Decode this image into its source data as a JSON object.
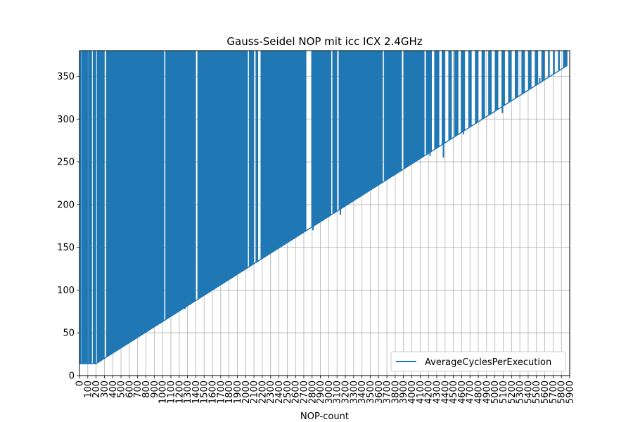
{
  "chart_data": {
    "type": "line",
    "title": "Gauss-Seidel NOP mit icc ICX 2.4GHz",
    "xlabel": "NOP-count",
    "ylabel": "",
    "xlim": [
      0,
      5900
    ],
    "ylim": [
      0,
      380
    ],
    "x_ticks": [
      0,
      100,
      200,
      300,
      400,
      500,
      600,
      700,
      800,
      900,
      1000,
      1100,
      1200,
      1300,
      1400,
      1500,
      1600,
      1700,
      1800,
      1900,
      2000,
      2100,
      2200,
      2300,
      2400,
      2500,
      2600,
      2700,
      2800,
      2900,
      3000,
      3100,
      3200,
      3300,
      3400,
      3500,
      3600,
      3700,
      3800,
      3900,
      4000,
      4100,
      4200,
      4300,
      4400,
      4500,
      4600,
      4700,
      4800,
      4900,
      5000,
      5100,
      5200,
      5300,
      5400,
      5500,
      5600,
      5700,
      5800,
      5900
    ],
    "y_ticks": [
      0,
      50,
      100,
      150,
      200,
      250,
      300,
      350
    ],
    "grid": true,
    "legend_position": "lower-right",
    "series": [
      {
        "name": "AverageCyclesPerExecution",
        "color": "#1f77b4",
        "baseline": [
          [
            0,
            14
          ],
          [
            200,
            14
          ],
          [
            5860,
            362
          ]
        ],
        "spike_top": 380,
        "spike_density_regions": [
          {
            "from": 0,
            "to": 300,
            "gaps": [
              [
                20,
                25
              ],
              [
                100,
                104
              ],
              [
                150,
                160
              ],
              [
                200,
                210
              ]
            ]
          },
          {
            "from": 300,
            "to": 4150,
            "gaps": [
              [
                300,
                320
              ],
              [
                1020,
                1035
              ],
              [
                1400,
                1420
              ],
              [
                2025,
                2040
              ],
              [
                2100,
                2120
              ],
              [
                2150,
                2180
              ],
              [
                2730,
                2790
              ],
              [
                3030,
                3045
              ],
              [
                3100,
                3120
              ],
              [
                3650,
                3665
              ],
              [
                3880,
                3900
              ]
            ]
          },
          {
            "from": 4150,
            "to": 5870,
            "gaps": [
              [
                4150,
                4170
              ],
              [
                4240,
                4270
              ],
              [
                4330,
                4360
              ],
              [
                4400,
                4440
              ],
              [
                4480,
                4510
              ],
              [
                4560,
                4590
              ],
              [
                4640,
                4680
              ],
              [
                4720,
                4760
              ],
              [
                4800,
                4840
              ],
              [
                4880,
                4920
              ],
              [
                4960,
                5000
              ],
              [
                5040,
                5080
              ],
              [
                5120,
                5160
              ],
              [
                5200,
                5240
              ],
              [
                5280,
                5320
              ],
              [
                5360,
                5400
              ],
              [
                5440,
                5480
              ],
              [
                5520,
                5560
              ],
              [
                5600,
                5640
              ],
              [
                5660,
                5700
              ],
              [
                5720,
                5760
              ],
              [
                5780,
                5820
              ]
            ]
          }
        ],
        "down_spikes": [
          [
            1020,
            65
          ],
          [
            1270,
            78
          ],
          [
            2810,
            170
          ],
          [
            3140,
            188
          ],
          [
            4220,
            257
          ],
          [
            4380,
            255
          ],
          [
            4620,
            282
          ],
          [
            5090,
            307
          ],
          [
            5540,
            348
          ]
        ]
      }
    ]
  }
}
